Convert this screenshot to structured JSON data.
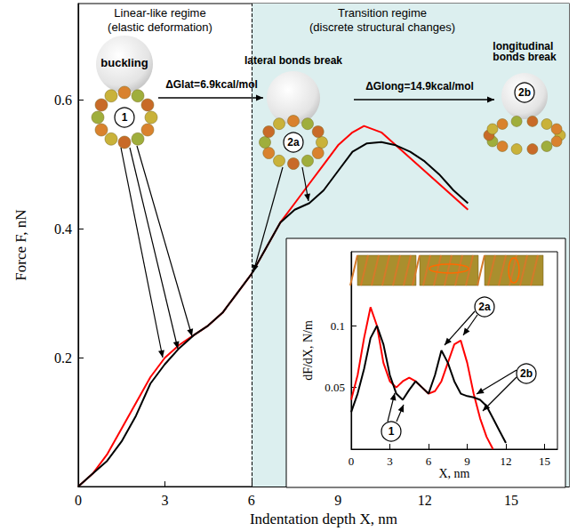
{
  "chart_data": [
    {
      "type": "line",
      "x_label": "Indentation depth X, nm",
      "y_label": "Force F, nN",
      "xlim": [
        0,
        17
      ],
      "xticks": [
        0,
        3,
        6,
        9,
        12,
        15
      ],
      "ylim": [
        0,
        0.75
      ],
      "yticks": [
        0.2,
        0.4,
        0.6
      ],
      "regime_boundary": 6,
      "regions": [
        {
          "title": "Linear-like regime",
          "subtitle": "(elastic deformation)"
        },
        {
          "title": "Transition regime",
          "subtitle": "(discrete structural changes)"
        }
      ],
      "states": [
        {
          "id": "1",
          "label": "buckling"
        },
        {
          "id": "2a",
          "label": "lateral bonds break"
        },
        {
          "id": "2b",
          "label": "longitudinal bonds break"
        }
      ],
      "transitions": [
        "ΔGlat=6.9kcal/mol",
        "ΔGlong=14.9kcal/mol"
      ],
      "series": [
        {
          "color": "#ff0000",
          "x": [
            0,
            0.5,
            1,
            1.5,
            2,
            2.5,
            3,
            3.5,
            4,
            4.5,
            5,
            5.5,
            6,
            6.5,
            7,
            7.5,
            8,
            8.5,
            9,
            9.5,
            9.9,
            10.5,
            11,
            11.5,
            12,
            12.5,
            13,
            13.5
          ],
          "values": [
            0,
            0.02,
            0.05,
            0.09,
            0.13,
            0.17,
            0.2,
            0.22,
            0.235,
            0.25,
            0.27,
            0.3,
            0.33,
            0.37,
            0.41,
            0.44,
            0.47,
            0.5,
            0.53,
            0.55,
            0.56,
            0.55,
            0.53,
            0.51,
            0.49,
            0.47,
            0.45,
            0.43
          ]
        },
        {
          "color": "#000000",
          "x": [
            0,
            0.5,
            1,
            1.5,
            2,
            2.5,
            3,
            3.5,
            4,
            4.5,
            5,
            5.5,
            6,
            6.5,
            7,
            7.5,
            8,
            8.5,
            9,
            9.5,
            10,
            10.5,
            11,
            11.5,
            12,
            12.5,
            13,
            13.5
          ],
          "values": [
            0,
            0.02,
            0.04,
            0.07,
            0.11,
            0.16,
            0.19,
            0.215,
            0.235,
            0.25,
            0.27,
            0.3,
            0.33,
            0.37,
            0.41,
            0.43,
            0.44,
            0.46,
            0.49,
            0.52,
            0.533,
            0.535,
            0.53,
            0.52,
            0.505,
            0.485,
            0.46,
            0.44
          ]
        }
      ]
    },
    {
      "type": "line",
      "x_label": "X, nm",
      "y_label": "dF/dX, N/m",
      "xlim": [
        0,
        16
      ],
      "xticks": [
        0,
        3,
        6,
        9,
        12,
        15
      ],
      "ylim": [
        0,
        0.16
      ],
      "yticks": [
        0.05,
        0.1
      ],
      "regime_boundary": 6,
      "states": [
        "1",
        "2a",
        "2b"
      ],
      "series": [
        {
          "color": "#ff0000",
          "x": [
            0,
            0.5,
            1,
            1.5,
            2,
            2.5,
            3,
            3.5,
            4,
            4.5,
            5,
            5.5,
            6,
            6.5,
            7,
            7.5,
            8,
            8.5,
            9,
            9.5,
            10,
            10.5,
            11
          ],
          "values": [
            0.04,
            0.06,
            0.09,
            0.115,
            0.1,
            0.07,
            0.055,
            0.05,
            0.055,
            0.058,
            0.055,
            0.05,
            0.045,
            0.047,
            0.055,
            0.07,
            0.085,
            0.088,
            0.07,
            0.045,
            0.025,
            0.01,
            0
          ]
        },
        {
          "color": "#000000",
          "x": [
            0,
            0.5,
            1,
            1.5,
            2,
            2.5,
            3,
            3.5,
            4,
            4.5,
            5,
            5.5,
            6,
            6.5,
            7,
            7.5,
            8,
            8.5,
            9,
            9.5,
            10,
            10.5,
            11,
            11.5,
            12
          ],
          "values": [
            0.03,
            0.045,
            0.065,
            0.09,
            0.1,
            0.085,
            0.06,
            0.045,
            0.04,
            0.048,
            0.055,
            0.05,
            0.045,
            0.06,
            0.08,
            0.07,
            0.055,
            0.045,
            0.043,
            0.042,
            0.04,
            0.035,
            0.025,
            0.015,
            0.005
          ]
        }
      ]
    }
  ]
}
